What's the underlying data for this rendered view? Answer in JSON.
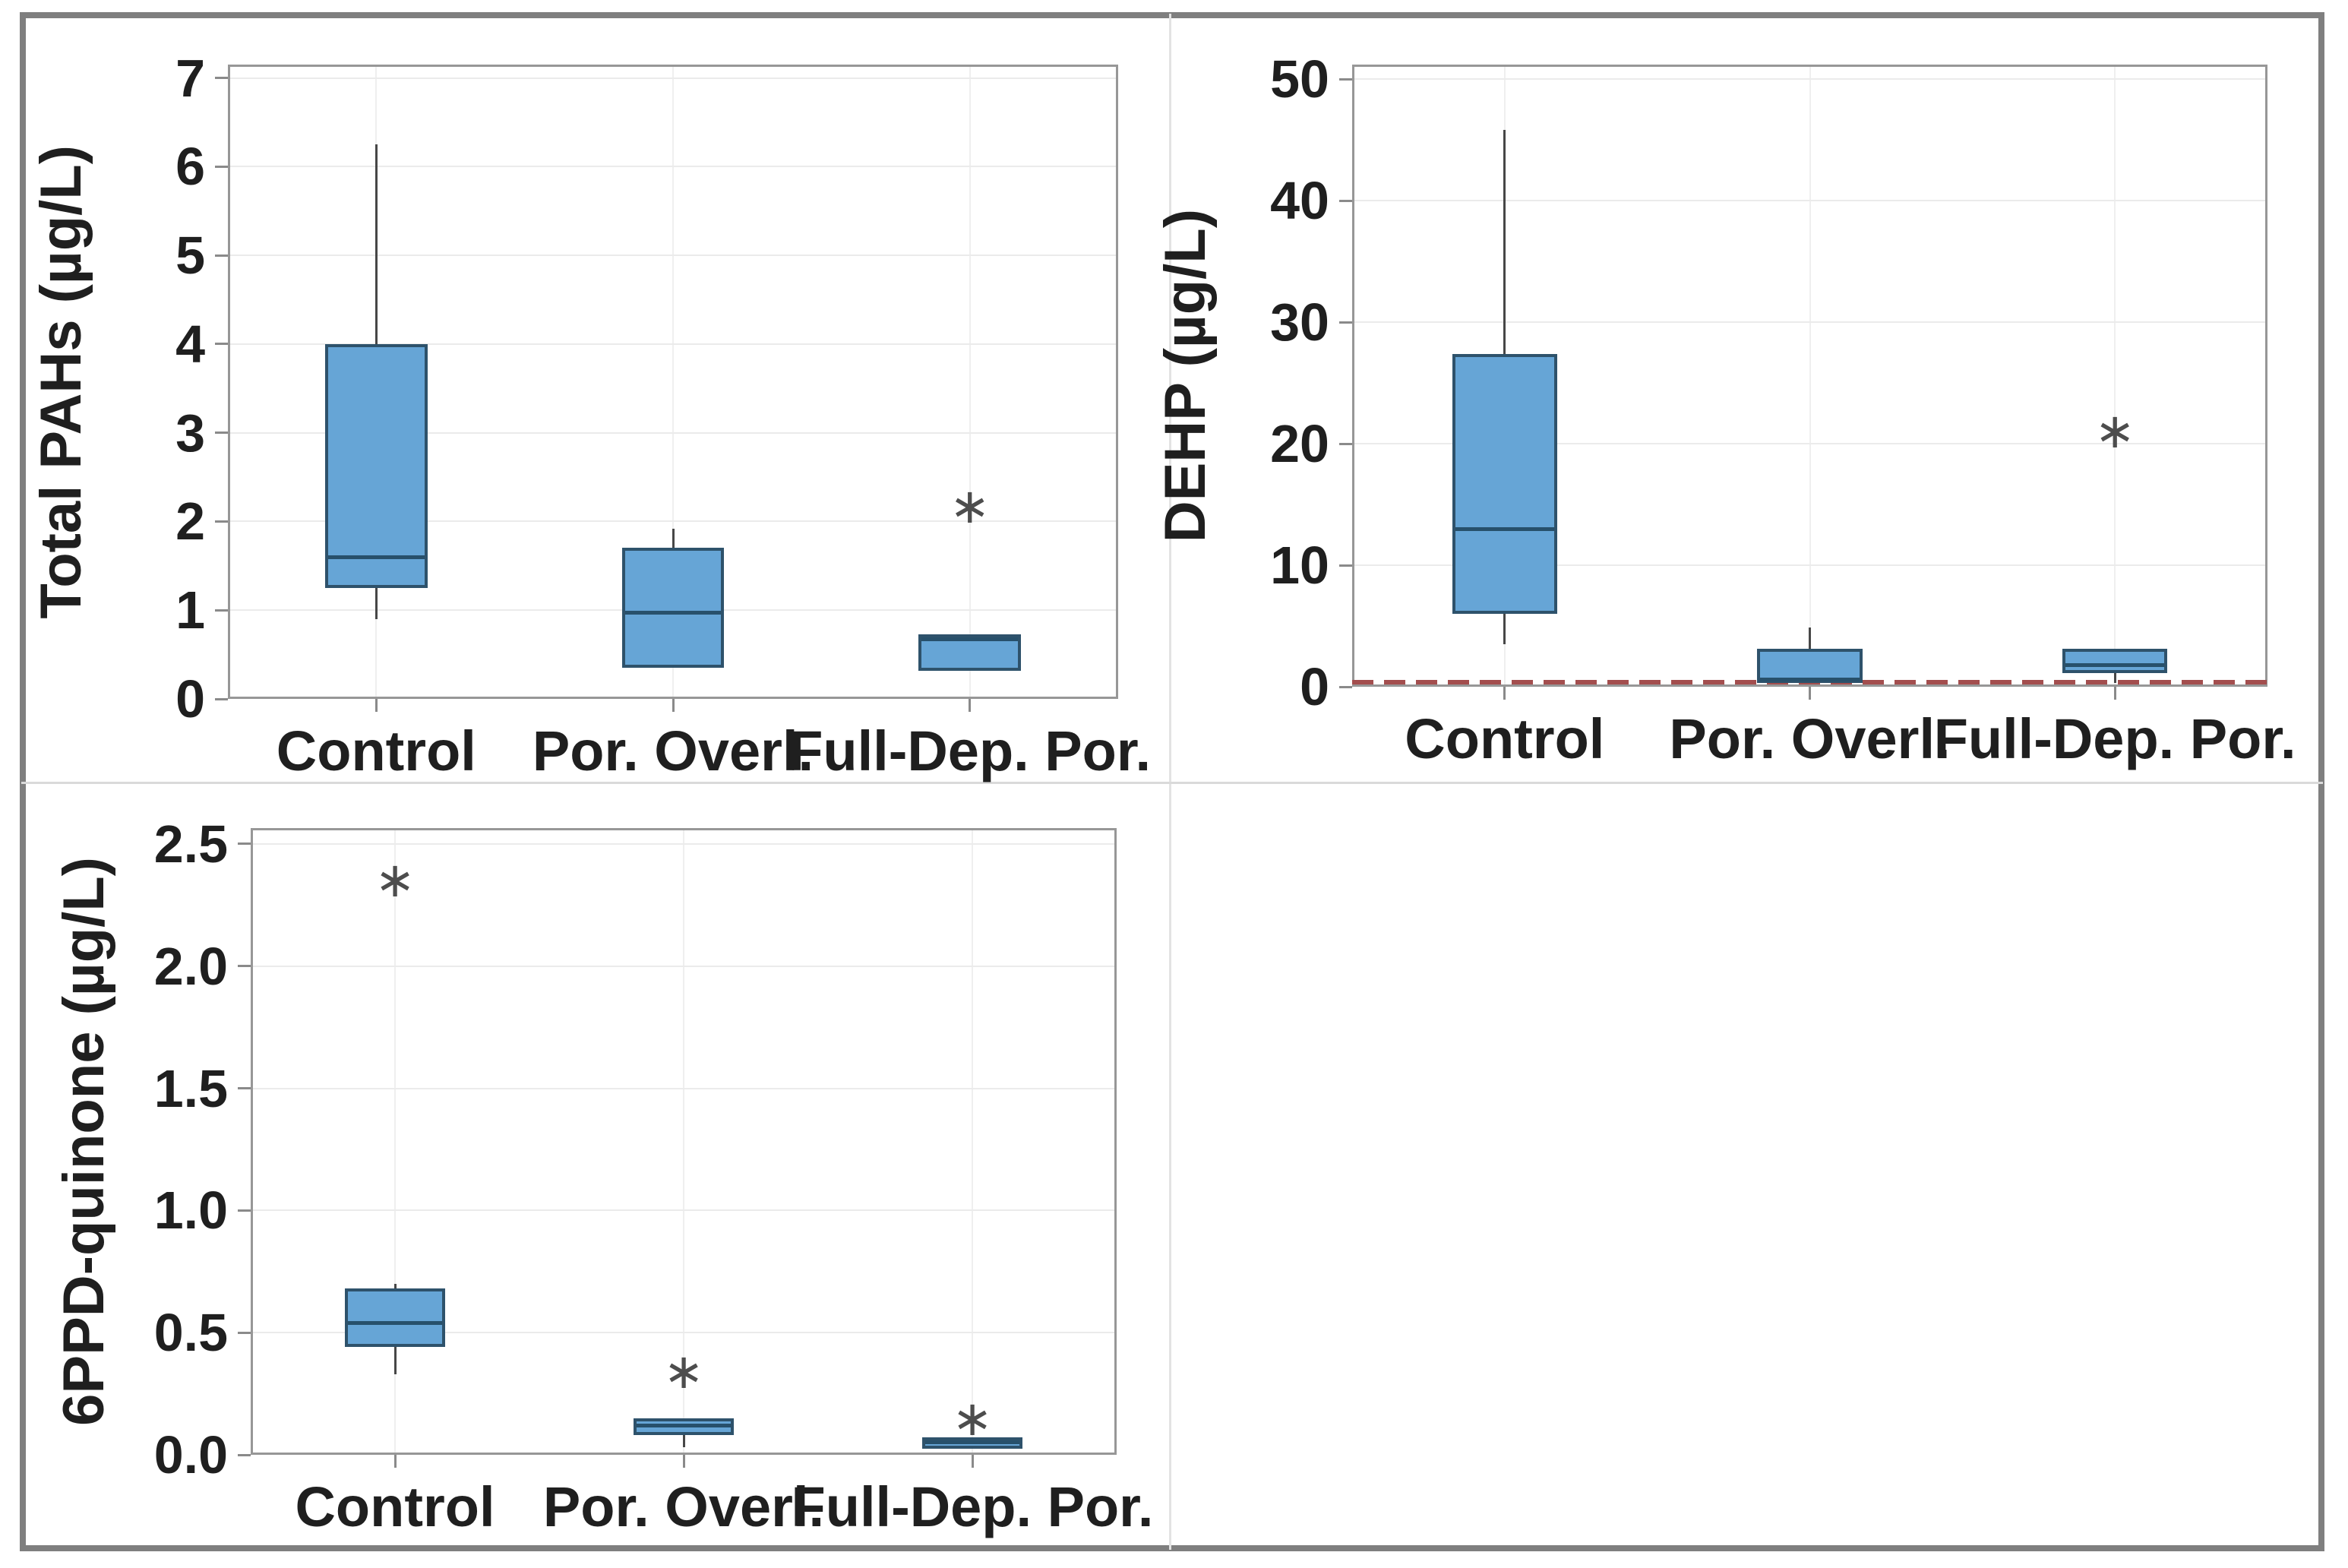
{
  "figure": {
    "background": "#ffffff",
    "border_color": "#7f7f7f",
    "divider_color": "#dadada",
    "box_fill": "#66a5d6",
    "box_border": "#2e526b",
    "median_color": "#27506b",
    "whisker_color": "#474747",
    "grid_color": "#ebebeb",
    "frame_color": "#979797",
    "outlier_color": "#4d4d4d",
    "outlier_marker": "∗",
    "reference_line_color": "#a34e4e"
  },
  "categories": [
    "Control",
    "Por. Overl.",
    "Full-Dep. Por."
  ],
  "chart_data": [
    {
      "type": "box",
      "panel": "total-pahs",
      "title": "",
      "xlabel": "",
      "ylabel": "Total PAHs (µg/L)",
      "ylim": [
        0,
        7.15
      ],
      "yticks": [
        0,
        1,
        2,
        3,
        4,
        5,
        6,
        7
      ],
      "ytick_labels": [
        "0",
        "1",
        "2",
        "3",
        "4",
        "5",
        "6",
        "7"
      ],
      "grid": "both",
      "legend": "none",
      "categories": [
        "Control",
        "Por. Overl.",
        "Full-Dep. Por."
      ],
      "boxes": [
        {
          "category": "Control",
          "whisker_low": 0.9,
          "q1": 1.25,
          "median": 1.6,
          "q3": 4.0,
          "whisker_high": 6.25,
          "outliers": []
        },
        {
          "category": "Por. Overl.",
          "whisker_low": 0.35,
          "q1": 0.35,
          "median": 0.97,
          "q3": 1.7,
          "whisker_high": 1.92,
          "outliers": []
        },
        {
          "category": "Full-Dep. Por.",
          "whisker_low": 0.32,
          "q1": 0.32,
          "median": 0.67,
          "q3": 0.73,
          "whisker_high": 0.73,
          "outliers": [
            2.17
          ]
        }
      ]
    },
    {
      "type": "box",
      "panel": "dehp",
      "title": "",
      "xlabel": "",
      "ylabel": "DEHP (µg/L)",
      "ylim": [
        0,
        51.2
      ],
      "yticks": [
        0,
        10,
        20,
        30,
        40,
        50
      ],
      "ytick_labels": [
        "0",
        "10",
        "20",
        "30",
        "40",
        "50"
      ],
      "grid": "both",
      "legend": "none",
      "categories": [
        "Control",
        "Por. Overl.",
        "Full-Dep. Por."
      ],
      "reference_line": {
        "y": 0.35,
        "style": "dashed",
        "color": "#a34e4e"
      },
      "boxes": [
        {
          "category": "Control",
          "whisker_low": 3.5,
          "q1": 6.0,
          "median": 13.0,
          "q3": 27.4,
          "whisker_high": 45.8,
          "outliers": []
        },
        {
          "category": "Por. Overl.",
          "whisker_low": 0.3,
          "q1": 0.3,
          "median": 0.6,
          "q3": 3.1,
          "whisker_high": 4.9,
          "outliers": []
        },
        {
          "category": "Full-Dep. Por.",
          "whisker_low": 0.3,
          "q1": 1.1,
          "median": 1.8,
          "q3": 3.1,
          "whisker_high": 3.1,
          "outliers": [
            21
          ]
        }
      ]
    },
    {
      "type": "box",
      "panel": "6ppd-quinone",
      "title": "",
      "xlabel": "",
      "ylabel": "6PPD-quinone (µg/L)",
      "ylim": [
        0,
        2.565
      ],
      "yticks": [
        0,
        0.5,
        1.0,
        1.5,
        2.0,
        2.5
      ],
      "ytick_labels": [
        "0.0",
        "0.5",
        "1.0",
        "1.5",
        "2.0",
        "2.5"
      ],
      "grid": "both",
      "legend": "none",
      "categories": [
        "Control",
        "Por. Overl.",
        "Full-Dep. Por."
      ],
      "boxes": [
        {
          "category": "Control",
          "whisker_low": 0.33,
          "q1": 0.44,
          "median": 0.54,
          "q3": 0.68,
          "whisker_high": 0.7,
          "outliers": [
            2.35
          ]
        },
        {
          "category": "Por. Overl.",
          "whisker_low": 0.03,
          "q1": 0.08,
          "median": 0.12,
          "q3": 0.15,
          "whisker_high": 0.15,
          "outliers": [
            0.34
          ]
        },
        {
          "category": "Full-Dep. Por.",
          "whisker_low": 0.025,
          "q1": 0.025,
          "median": 0.05,
          "q3": 0.07,
          "whisker_high": 0.07,
          "outliers": [
            0.145
          ]
        }
      ]
    }
  ]
}
